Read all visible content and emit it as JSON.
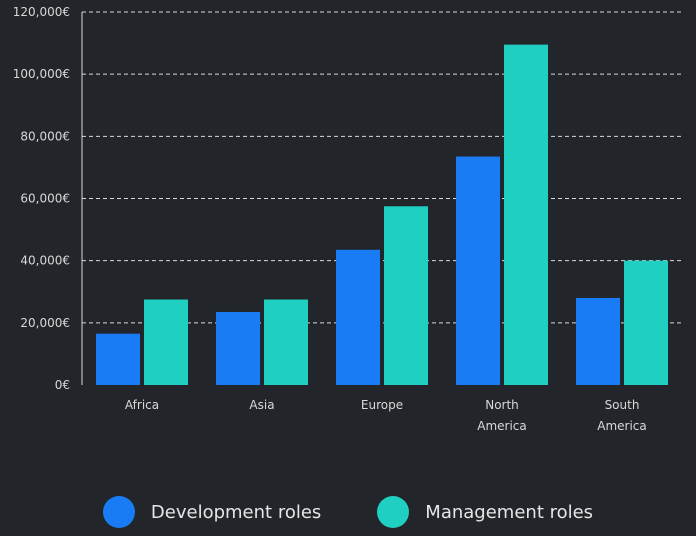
{
  "chart_data": {
    "type": "bar",
    "categories": [
      [
        "Africa"
      ],
      [
        "Asia"
      ],
      [
        "Europe"
      ],
      [
        "North",
        "America"
      ],
      [
        "South",
        "America"
      ]
    ],
    "series": [
      {
        "name": "Development roles",
        "color": "#1a7cf5",
        "values": [
          16500,
          23500,
          43500,
          73500,
          28000
        ]
      },
      {
        "name": "Management roles",
        "color": "#1fcfc2",
        "values": [
          27500,
          27500,
          57500,
          109500,
          40000
        ]
      }
    ],
    "y_ticks": [
      "0€",
      "20,000€",
      "40,000€",
      "60,000€",
      "80,000€",
      "100,000€",
      "120,000€"
    ],
    "ylim": [
      0,
      120000
    ],
    "grid": true,
    "grid_style": "dashed",
    "legend_position": "bottom-center"
  },
  "legend": [
    {
      "label": "Development roles",
      "color": "#1a7cf5"
    },
    {
      "label": "Management roles",
      "color": "#1fcfc2"
    }
  ]
}
